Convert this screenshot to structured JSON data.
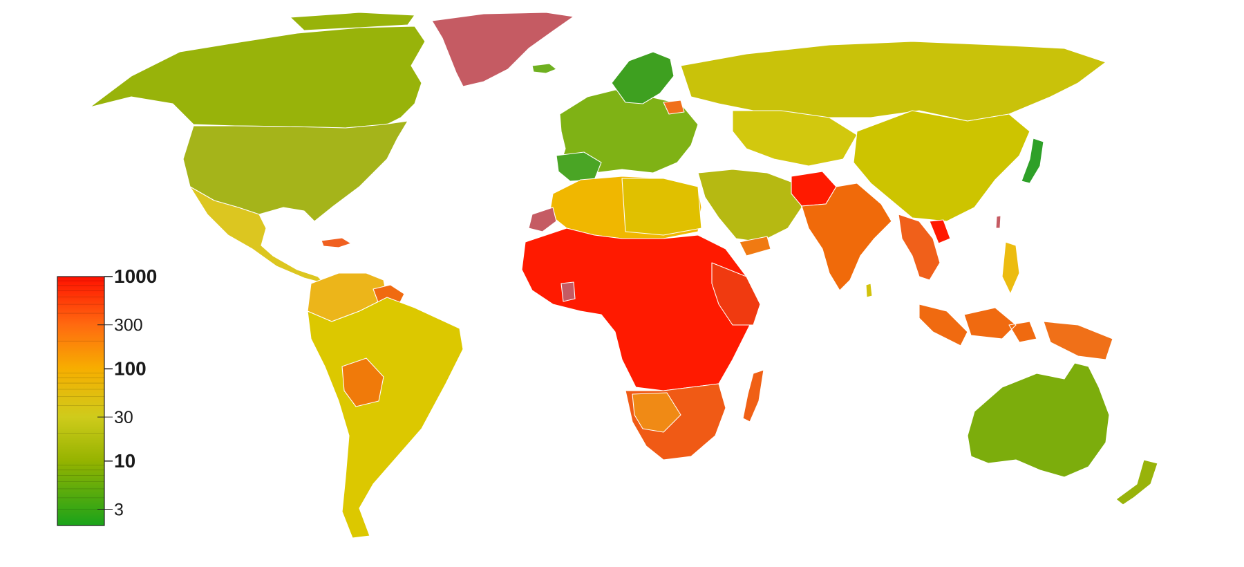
{
  "legend": {
    "scale": "log",
    "range": [
      2,
      1000
    ],
    "color_stops": [
      {
        "value": 2,
        "color": "#1aa31a"
      },
      {
        "value": 10,
        "color": "#95b300"
      },
      {
        "value": 30,
        "color": "#cfcb1b"
      },
      {
        "value": 100,
        "color": "#f7ae00"
      },
      {
        "value": 300,
        "color": "#ff6a10"
      },
      {
        "value": 1000,
        "color": "#ff1100"
      }
    ],
    "ticks": [
      {
        "value": 1000,
        "label": "1000",
        "major": true
      },
      {
        "value": 300,
        "label": "300",
        "major": false
      },
      {
        "value": 100,
        "label": "100",
        "major": true
      },
      {
        "value": 30,
        "label": "30",
        "major": false
      },
      {
        "value": 10,
        "label": "10",
        "major": true
      },
      {
        "value": 3,
        "label": "3",
        "major": false
      }
    ]
  },
  "colors": {
    "no_data": "#c55b63",
    "border": "#ffffff",
    "background": "#ffffff"
  }
}
